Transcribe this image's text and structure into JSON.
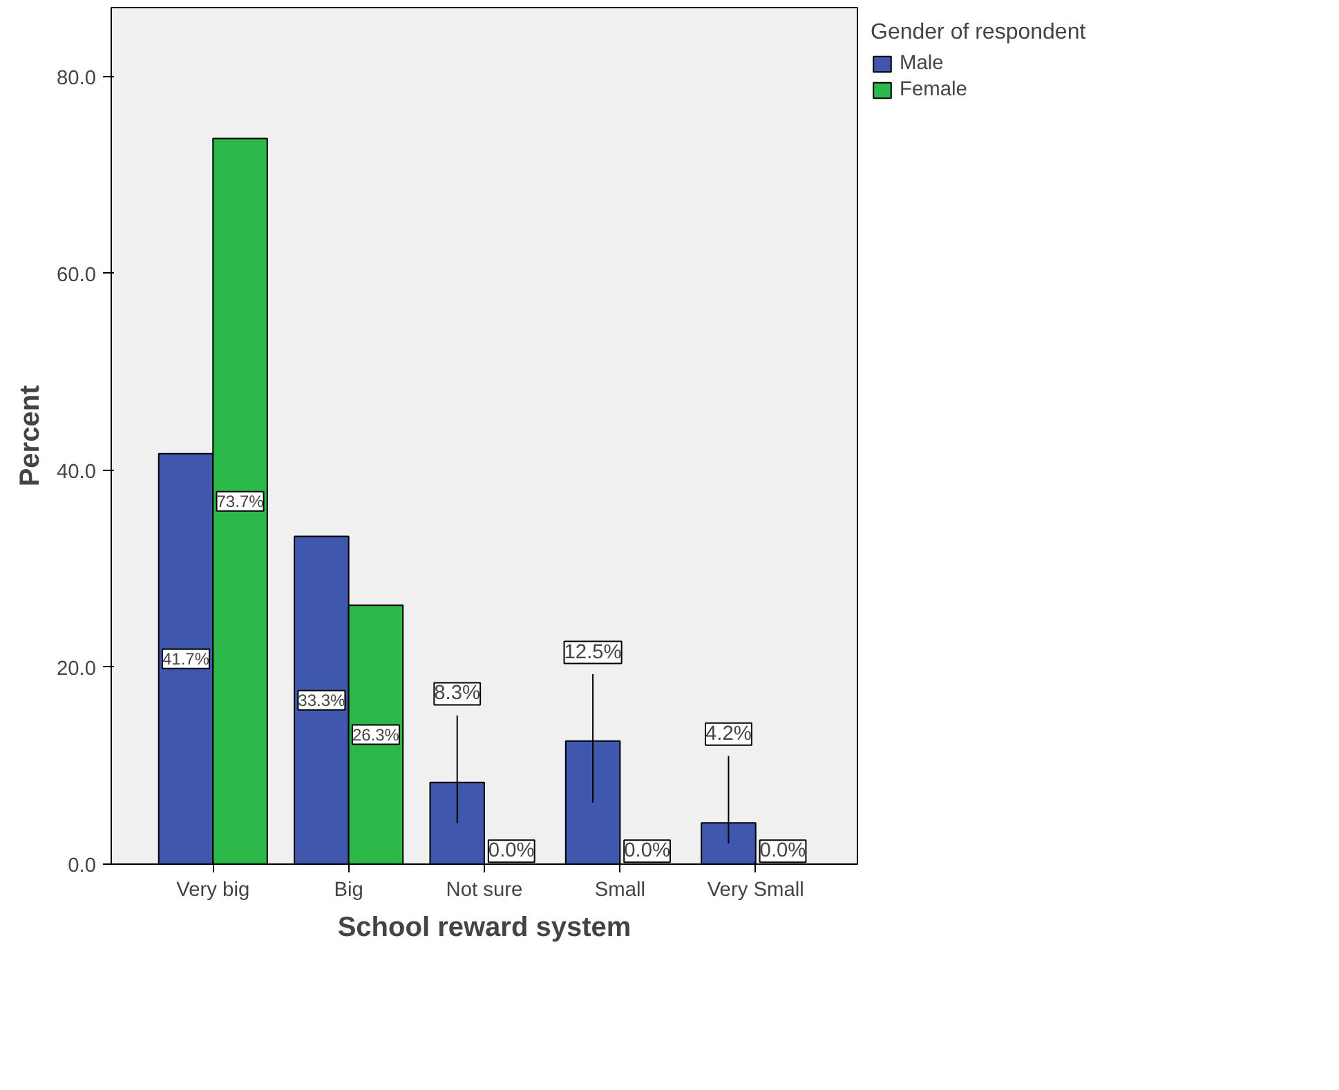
{
  "chart_data": {
    "type": "bar",
    "xlabel": "School reward system",
    "ylabel": "Percent",
    "legend_title": "Gender of respondent",
    "categories": [
      "Very big",
      "Big",
      "Not sure",
      "Small",
      "Very Small"
    ],
    "series": [
      {
        "name": "Male",
        "color": "#3f57ad",
        "values": [
          41.7,
          33.3,
          8.3,
          12.5,
          4.2
        ],
        "value_labels": [
          "41.7%",
          "33.3%",
          "8.3%",
          "12.5%",
          "4.2%"
        ]
      },
      {
        "name": "Female",
        "color": "#2db84a",
        "values": [
          73.7,
          26.3,
          0.0,
          0.0,
          0.0
        ],
        "value_labels": [
          "73.7%",
          "26.3%",
          "0.0%",
          "0.0%",
          "0.0%"
        ]
      }
    ],
    "ylim": [
      0,
      87
    ],
    "yticks": [
      {
        "value": 0,
        "label": "0.0"
      },
      {
        "value": 20,
        "label": "20.0"
      },
      {
        "value": 40,
        "label": "40.0"
      },
      {
        "value": 60,
        "label": "60.0"
      },
      {
        "value": 80,
        "label": "80.0"
      }
    ],
    "legend": "top right",
    "grid": false
  }
}
